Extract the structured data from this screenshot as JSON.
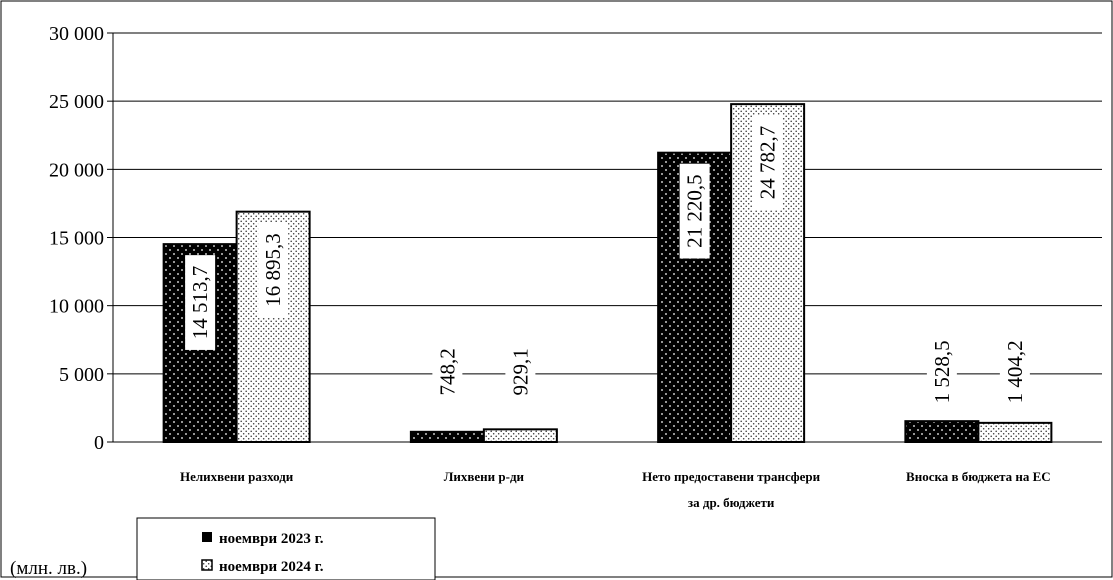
{
  "chart_data": {
    "type": "bar",
    "unit_label": "(млн. лв.)",
    "categories": [
      [
        "Нелихвени разходи"
      ],
      [
        "Лихвени р-ди"
      ],
      [
        "Нето предоставени трансфери",
        "за др. бюджети"
      ],
      [
        "Вноска в бюджета на ЕС"
      ]
    ],
    "series": [
      {
        "name": "ноември 2023 г.",
        "values": [
          14513.7,
          748.2,
          21220.5,
          1528.5
        ],
        "labels": [
          "14 513,7",
          "748,2",
          "21 220,5",
          "1 528,5"
        ],
        "pattern": "dark-dotted",
        "color": "#000000"
      },
      {
        "name": "ноември 2024 г.",
        "values": [
          16895.3,
          929.1,
          24782.7,
          1404.2
        ],
        "labels": [
          "16 895,3",
          "929,1",
          "24 782,7",
          "1 404,2"
        ],
        "pattern": "light-dotted",
        "color": "#ffffff"
      }
    ],
    "ylim": [
      0,
      30000
    ],
    "yticks": [
      0,
      5000,
      10000,
      15000,
      20000,
      25000,
      30000
    ],
    "ytick_labels": [
      "0",
      "5 000",
      "10 000",
      "15 000",
      "20 000",
      "25 000",
      "30 000"
    ],
    "grid": true,
    "legend_position": "bottom-left"
  }
}
